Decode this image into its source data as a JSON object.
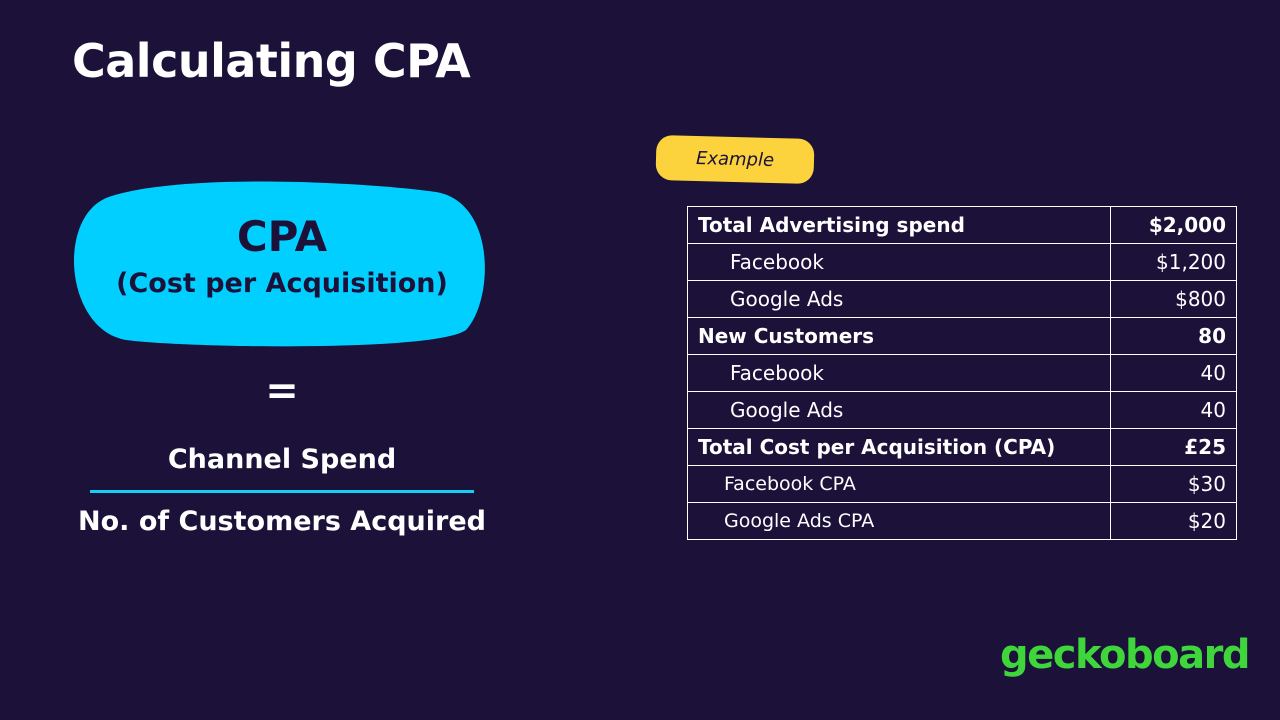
{
  "header": {
    "title": "Calculating CPA"
  },
  "formula": {
    "label": "CPA",
    "sublabel": "(Cost per Acquisition)",
    "equals": "=",
    "numerator": "Channel Spend",
    "denominator": "No. of Customers Acquired"
  },
  "example": {
    "badge": "Example",
    "table": {
      "rows": [
        [
          "Total Advertising spend",
          "$2,000"
        ],
        [
          "Facebook",
          "$1,200"
        ],
        [
          "Google Ads",
          "$800"
        ],
        [
          "New Customers",
          "80"
        ],
        [
          "Facebook",
          "40"
        ],
        [
          "Google Ads",
          "40"
        ],
        [
          "Total Cost per Acquisition (CPA)",
          "£25"
        ],
        [
          "Facebook CPA",
          "$30"
        ],
        [
          "Google Ads CPA",
          "$20"
        ]
      ]
    }
  },
  "footer": {
    "logo": "geckoboard"
  }
}
